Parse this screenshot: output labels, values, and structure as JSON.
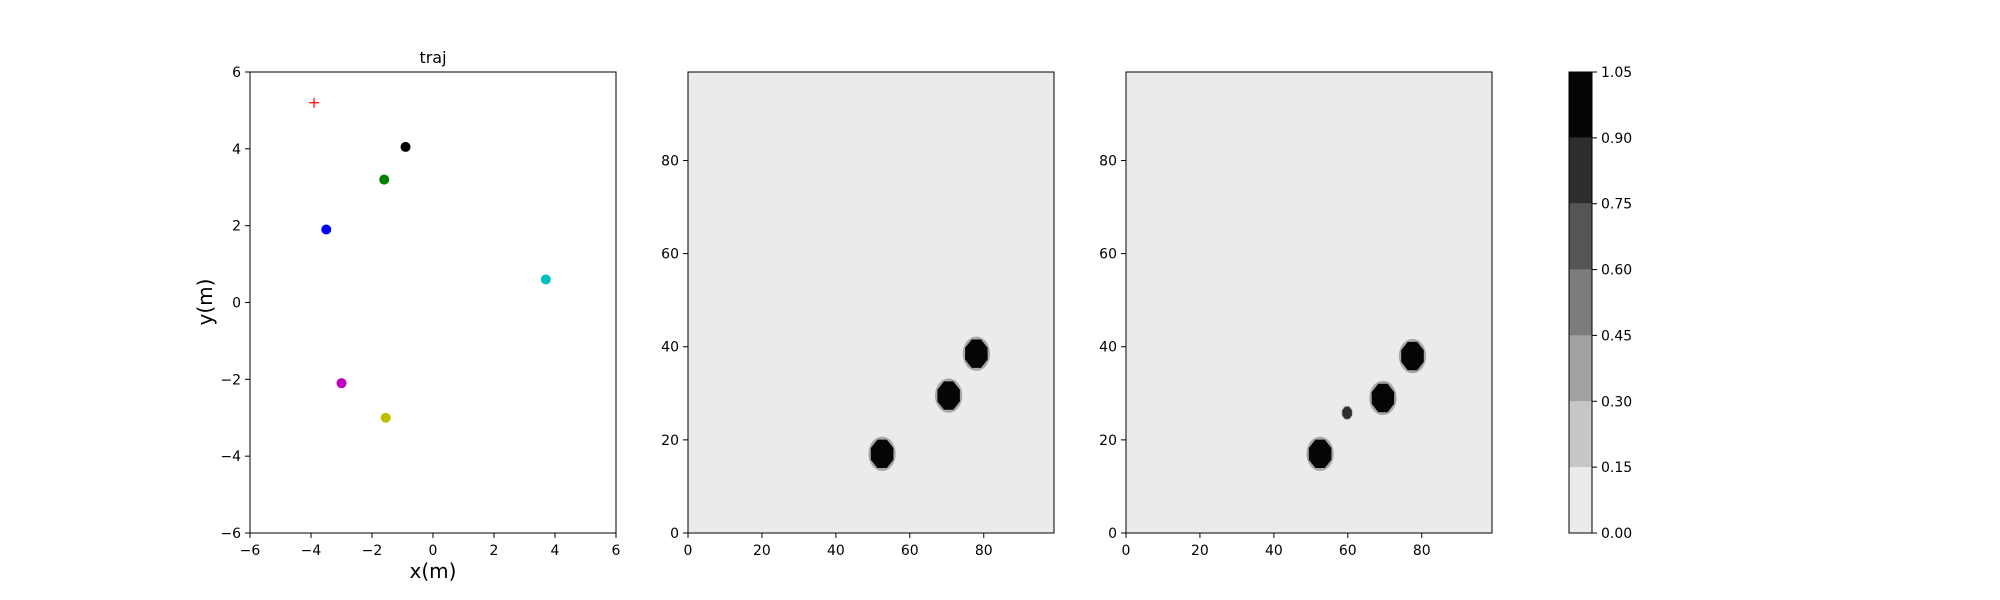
{
  "chart_data": [
    {
      "type": "scatter",
      "title": "traj",
      "xlabel": "x(m)",
      "ylabel": "y(m)",
      "xlim": [
        -6,
        6
      ],
      "ylim": [
        -6,
        6
      ],
      "xticks": [
        -6,
        -4,
        -2,
        0,
        2,
        4,
        6
      ],
      "yticks": [
        -6,
        -4,
        -2,
        0,
        2,
        4,
        6
      ],
      "xtick_labels": [
        "−6",
        "−4",
        "−2",
        "0",
        "2",
        "4",
        "6"
      ],
      "ytick_labels": [
        "−6",
        "−4",
        "−2",
        "0",
        "2",
        "4",
        "6"
      ],
      "grid": false,
      "points": [
        {
          "x": -3.9,
          "y": 5.2,
          "color": "#ff0000",
          "marker": "plus"
        },
        {
          "x": -0.9,
          "y": 4.05,
          "color": "#000000",
          "marker": "circle"
        },
        {
          "x": -1.6,
          "y": 3.2,
          "color": "#008000",
          "marker": "circle"
        },
        {
          "x": -3.5,
          "y": 1.9,
          "color": "#0000ff",
          "marker": "circle"
        },
        {
          "x": 3.7,
          "y": 0.6,
          "color": "#00bfbf",
          "marker": "circle"
        },
        {
          "x": -3.0,
          "y": -2.1,
          "color": "#bf00bf",
          "marker": "circle"
        },
        {
          "x": -1.55,
          "y": -3.0,
          "color": "#bfbf00",
          "marker": "circle"
        }
      ]
    },
    {
      "type": "heatmap",
      "xlim": [
        0,
        99
      ],
      "ylim": [
        0,
        99
      ],
      "xticks": [
        0,
        20,
        40,
        60,
        80
      ],
      "yticks": [
        0,
        20,
        40,
        60,
        80
      ],
      "xtick_labels": [
        "0",
        "20",
        "40",
        "60",
        "80"
      ],
      "ytick_labels": [
        "0",
        "20",
        "40",
        "60",
        "80"
      ],
      "background_value": 0.05,
      "blobs": [
        {
          "x": 52.5,
          "y": 17.0,
          "radius": 3.3,
          "value": 1.0
        },
        {
          "x": 70.5,
          "y": 29.5,
          "radius": 3.3,
          "value": 1.0
        },
        {
          "x": 78.0,
          "y": 38.5,
          "radius": 3.3,
          "value": 1.0
        }
      ]
    },
    {
      "type": "heatmap",
      "xlim": [
        0,
        99
      ],
      "ylim": [
        0,
        99
      ],
      "xticks": [
        0,
        20,
        40,
        60,
        80
      ],
      "yticks": [
        0,
        20,
        40,
        60,
        80
      ],
      "xtick_labels": [
        "0",
        "20",
        "40",
        "60",
        "80"
      ],
      "ytick_labels": [
        "0",
        "20",
        "40",
        "60",
        "80"
      ],
      "background_value": 0.05,
      "blobs": [
        {
          "x": 52.5,
          "y": 17.0,
          "radius": 3.3,
          "value": 1.0
        },
        {
          "x": 59.8,
          "y": 25.8,
          "radius": 1.4,
          "value": 0.75
        },
        {
          "x": 69.5,
          "y": 29.0,
          "radius": 3.3,
          "value": 1.0
        },
        {
          "x": 77.5,
          "y": 38.0,
          "radius": 3.3,
          "value": 1.0
        }
      ]
    },
    {
      "type": "colorbar",
      "range": [
        0,
        1.05
      ],
      "boundaries": [
        0.0,
        0.15,
        0.3,
        0.45,
        0.6,
        0.75,
        0.9,
        1.05
      ],
      "tick_labels": [
        "0.00",
        "0.15",
        "0.30",
        "0.45",
        "0.60",
        "0.75",
        "0.90",
        "1.05"
      ],
      "level_colors": [
        "#ebebeb",
        "#c7c7c7",
        "#a1a1a1",
        "#7c7c7c",
        "#555555",
        "#2e2e2e",
        "#050505"
      ]
    }
  ]
}
